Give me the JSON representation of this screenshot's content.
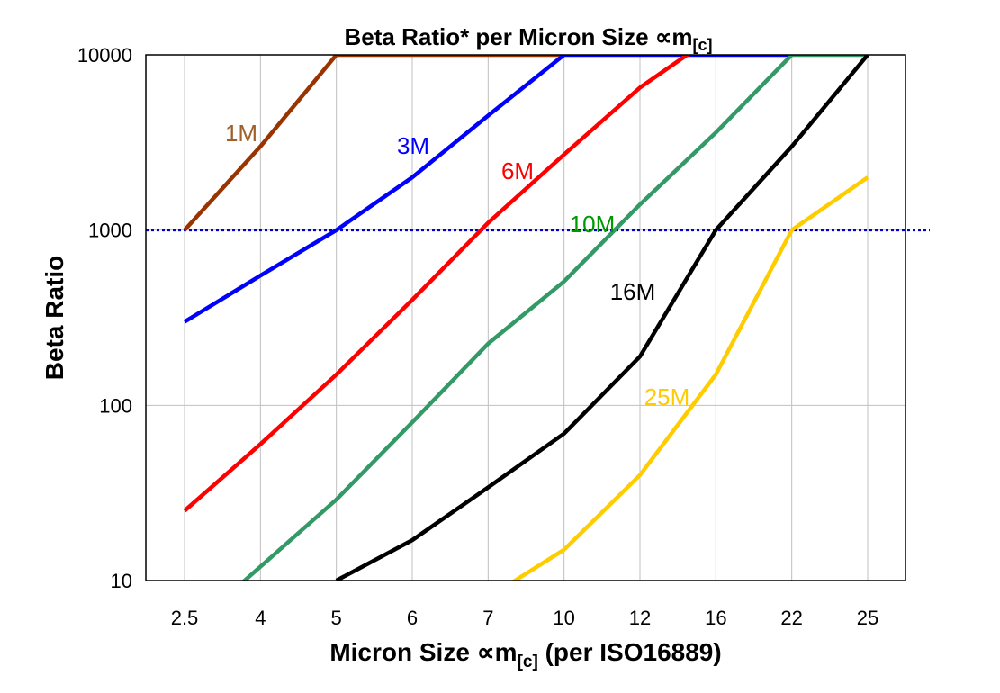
{
  "chart_data": {
    "type": "line",
    "title": "Beta Ratio* per Micron Size ∝m",
    "title_subscript": "[c]",
    "xlabel": "Micron Size ∝m",
    "xlabel_subscript": "[c]",
    "xlabel_suffix": " (per ISO16889)",
    "ylabel": "Beta Ratio",
    "y_scale": "log",
    "ylim": [
      10,
      10000
    ],
    "y_ticks": [
      "10",
      "100",
      "1000",
      "10000"
    ],
    "categories": [
      "2.5",
      "4",
      "5",
      "6",
      "7",
      "10",
      "12",
      "16",
      "22",
      "25"
    ],
    "grid": true,
    "reference_line": {
      "y": 1000,
      "color": "#0000CC",
      "style": "dotted"
    },
    "series": [
      {
        "name": "1M",
        "color": "#993300",
        "label_color": "#A0602A",
        "values": [
          1000,
          3000,
          10000,
          10000,
          10000,
          10000,
          null,
          null,
          null,
          null
        ]
      },
      {
        "name": "3M",
        "color": "#0000FF",
        "label_color": "#0000FF",
        "values": [
          300,
          550,
          1000,
          2000,
          4500,
          10000,
          10000,
          10000,
          10000,
          null
        ]
      },
      {
        "name": "6M",
        "color": "#FF0000",
        "label_color": "#FF0000",
        "values": [
          25,
          60,
          150,
          400,
          1100,
          2700,
          6500,
          13000,
          null,
          null
        ]
      },
      {
        "name": "10M",
        "color": "#339966",
        "label_color": "#009900",
        "values": [
          5,
          12,
          29,
          80,
          225,
          510,
          1400,
          3600,
          10000,
          10000
        ]
      },
      {
        "name": "16M",
        "color": "#000000",
        "label_color": "#000000",
        "values": [
          null,
          null,
          10,
          17,
          34,
          69,
          190,
          1000,
          3000,
          10000
        ]
      },
      {
        "name": "25M",
        "color": "#FFCC00",
        "label_color": "#FFCC00",
        "values": [
          null,
          null,
          null,
          null,
          8,
          15,
          40,
          150,
          1000,
          2000
        ]
      }
    ]
  }
}
